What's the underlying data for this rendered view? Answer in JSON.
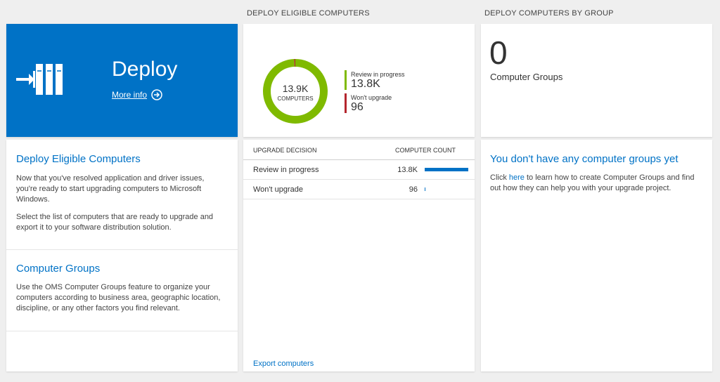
{
  "deploy_tile": {
    "title": "Deploy",
    "link": "More info"
  },
  "left_panel": {
    "sections": [
      {
        "heading": "Deploy Eligible Computers",
        "paragraphs": [
          "Now that you've resolved application and driver issues, you're ready to start upgrading computers to Microsoft Windows.",
          "Select the list of computers that are ready to upgrade and export it to your software distribution solution."
        ]
      },
      {
        "heading": "Computer Groups",
        "paragraphs": [
          "Use the OMS Computer Groups feature to organize your computers according to business area, geographic location, discipline, or any other factors you find relevant."
        ]
      }
    ]
  },
  "eligible": {
    "header": "DEPLOY ELIGIBLE COMPUTERS",
    "chart_data": {
      "type": "pie",
      "categories": [
        "Review in progress",
        "Won't upgrade"
      ],
      "values": [
        13800,
        96
      ],
      "value_labels": [
        "13.8K",
        "96"
      ],
      "colors": [
        "#7fba00",
        "#b4262e"
      ],
      "center_value": 13900,
      "center_label": "13.9K",
      "center_caption": "COMPUTERS"
    },
    "table": {
      "columns": [
        "UPGRADE DECISION",
        "COMPUTER COUNT"
      ],
      "bar_color": "#0072c6"
    },
    "link": "Export computers"
  },
  "groups": {
    "header": "DEPLOY COMPUTERS BY GROUP",
    "count": "0",
    "count_caption": "Computer Groups",
    "heading": "You don't have any computer groups yet",
    "text_parts": [
      "Click ",
      "here",
      " to learn how to create Computer Groups and find out how they can help you with your upgrade project."
    ]
  }
}
